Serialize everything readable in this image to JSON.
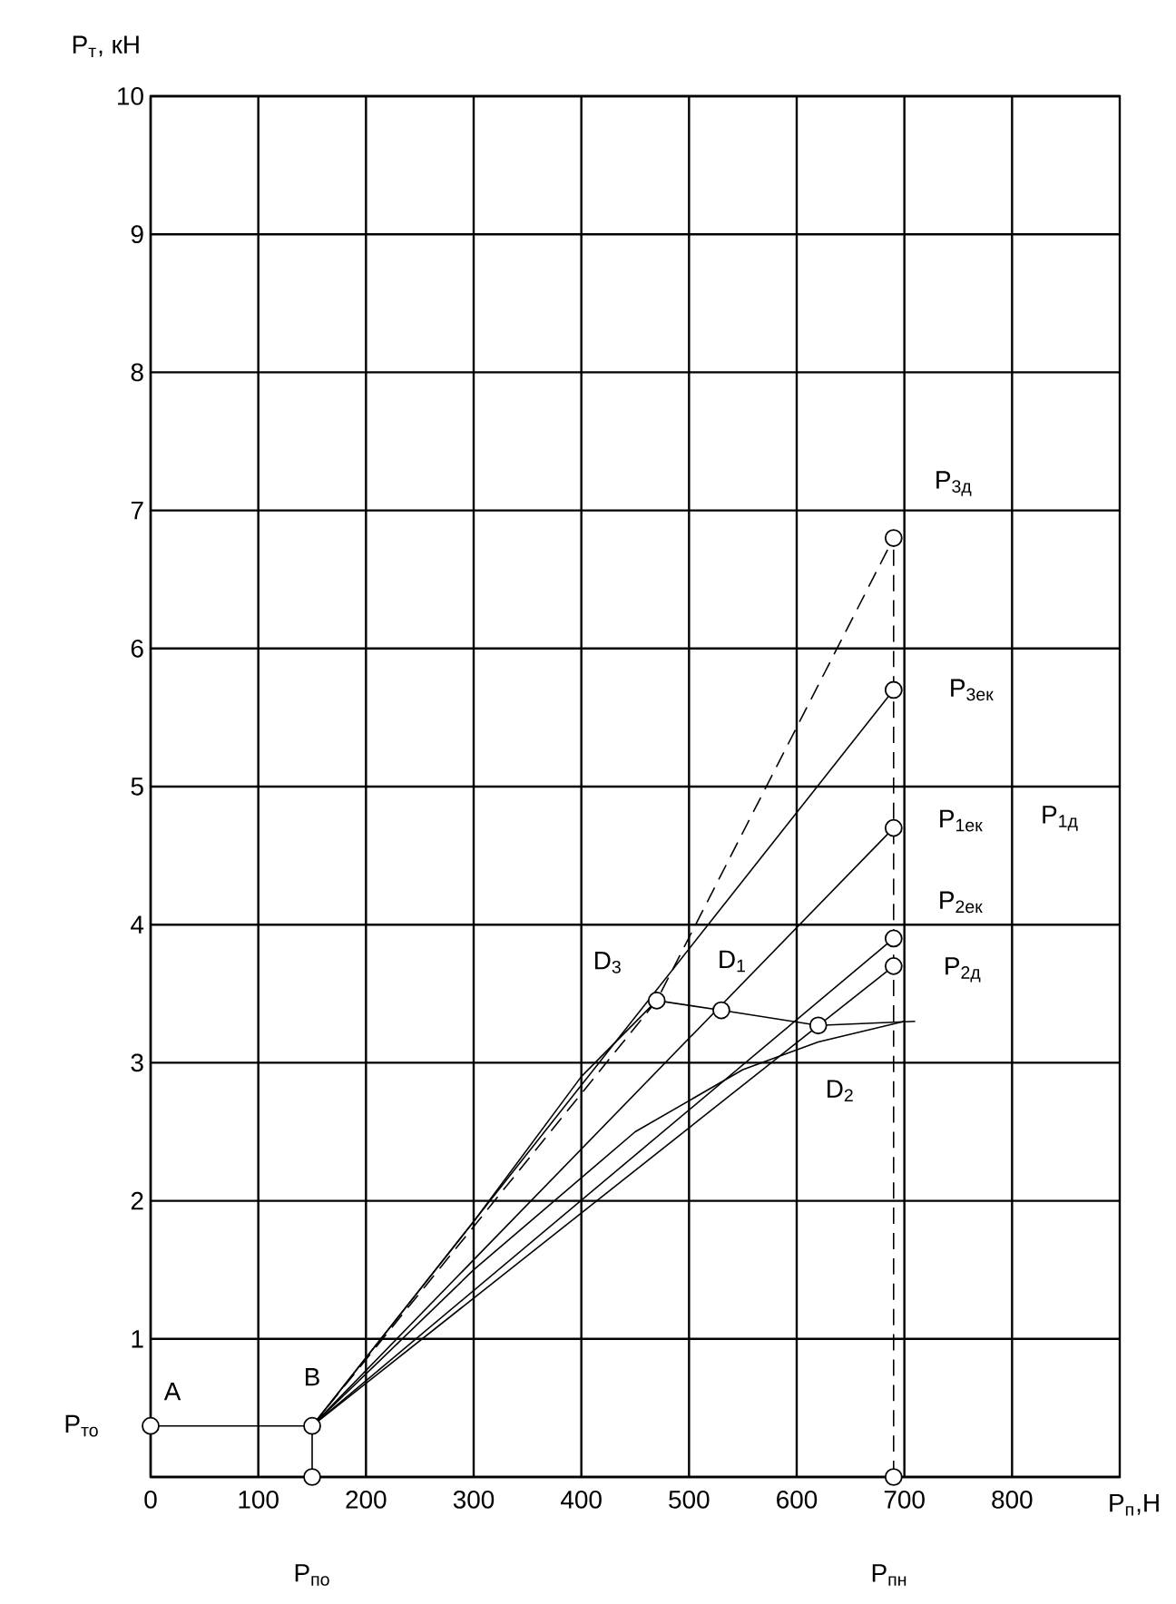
{
  "chart_data": {
    "type": "line",
    "xlabel": "P$_{п}$,Н",
    "ylabel": "P$_{т}$, кН",
    "xlim": [
      0,
      900
    ],
    "ylim": [
      0,
      10
    ],
    "xticks": [
      0,
      100,
      200,
      300,
      400,
      500,
      600,
      700,
      800
    ],
    "yticks": [
      {
        "value": 0,
        "label": null
      },
      1,
      2,
      3,
      4,
      5,
      6,
      7,
      8,
      9,
      10
    ],
    "grid": true,
    "series": [
      {
        "color": "#000000",
        "line_style": "dashed",
        "x": [
          150,
          470,
          690
        ],
        "values": [
          0.37,
          3.45,
          6.8
        ]
      },
      {
        "color": "#000000",
        "line_style": "solid",
        "x": [
          150,
          690
        ],
        "values": [
          0.37,
          5.7
        ]
      },
      {
        "color": "#000000",
        "line_style": "solid",
        "x": [
          150,
          690
        ],
        "values": [
          0.37,
          4.7
        ]
      },
      {
        "color": "#000000",
        "line_style": "solid",
        "x": [
          150,
          690
        ],
        "values": [
          0.37,
          3.9
        ]
      },
      {
        "color": "#000000",
        "line_style": "solid",
        "x": [
          150,
          690
        ],
        "values": [
          0.37,
          3.7
        ]
      },
      {
        "color": "#000000",
        "line_style": "solid",
        "x": [
          150,
          300,
          400,
          470,
          530,
          620,
          710
        ],
        "values": [
          0.37,
          1.85,
          2.9,
          3.45,
          3.38,
          3.27,
          3.3
        ]
      },
      {
        "color": "#000000",
        "line_style": "solid",
        "x": [
          150,
          300,
          450,
          550,
          620,
          700
        ],
        "values": [
          0.37,
          1.5,
          2.5,
          2.95,
          3.15,
          3.3
        ]
      },
      {
        "color": "#000000",
        "line_style": "dashed",
        "x": [
          690,
          690
        ],
        "values": [
          0,
          6.8
        ]
      },
      {
        "color": "#000000",
        "line_style": "solid",
        "x": [
          0,
          150,
          150
        ],
        "values": [
          0.37,
          0.37,
          0
        ]
      },
      {
        "type": "scatter",
        "color": "#000000",
        "marker": "circle",
        "x": [
          0,
          150,
          150,
          690,
          690,
          690,
          690,
          690,
          690,
          470,
          530,
          620
        ],
        "values": [
          0.37,
          0.37,
          0,
          6.8,
          5.7,
          4.7,
          3.9,
          3.7,
          0,
          3.45,
          3.38,
          3.27
        ]
      }
    ],
    "annotations": [
      {
        "text": "A",
        "x": 0,
        "y": 0.37
      },
      {
        "text": "B",
        "x": 150,
        "y": 0.37
      },
      {
        "text": "P$_{то}$",
        "x": 0,
        "y": 0.37
      },
      "P$_{по}$",
      "P$_{пн}$",
      {
        "text": "P$_{3д}$",
        "x": 690,
        "y": 6.8
      },
      {
        "text": "P$_{3ек}$",
        "x": 690,
        "y": 5.7
      },
      {
        "text": "P$_{1ек}$",
        "x": 690,
        "y": 4.7
      },
      "P$_{1д}$",
      {
        "text": "P$_{2ек}$",
        "x": 690,
        "y": 3.9
      },
      {
        "text": "P$_{2д}$",
        "x": 690,
        "y": 3.7
      },
      {
        "text": "D$_{3}$",
        "x": 470,
        "y": 3.45
      },
      {
        "text": "D$_{1}$",
        "x": 530,
        "y": 3.38
      },
      {
        "text": "D$_{2}$",
        "x": 620,
        "y": 3.27
      }
    ]
  }
}
